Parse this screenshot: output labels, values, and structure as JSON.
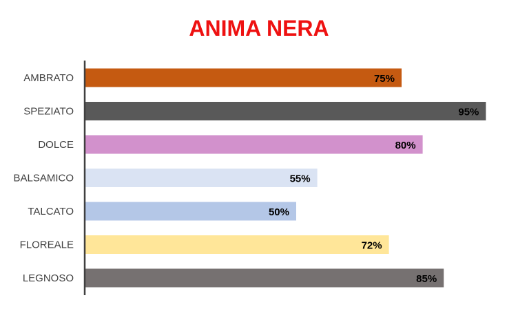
{
  "chart_data": {
    "type": "bar",
    "orientation": "horizontal",
    "title": "ANIMA NERA",
    "title_color": "#ee1111",
    "categories": [
      "AMBRATO",
      "SPEZIATO",
      "DOLCE",
      "BALSAMICO",
      "TALCATO",
      "FLOREALE",
      "LEGNOSO"
    ],
    "values": [
      75,
      95,
      80,
      55,
      50,
      72,
      85
    ],
    "data_labels": [
      "75%",
      "95%",
      "80%",
      "55%",
      "50%",
      "72%",
      "85%"
    ],
    "colors": [
      "#c55a11",
      "#595959",
      "#d291cc",
      "#dae3f3",
      "#b4c7e7",
      "#ffe699",
      "#767171"
    ],
    "xlim": [
      0,
      100
    ],
    "grid": false,
    "legend": "none"
  }
}
